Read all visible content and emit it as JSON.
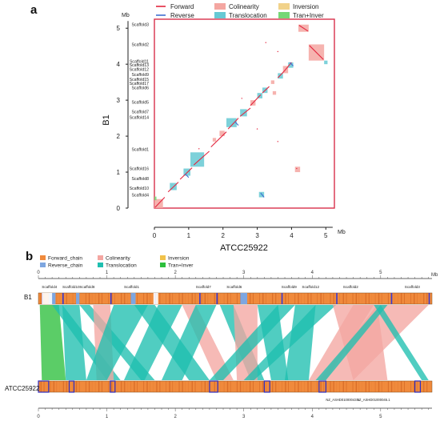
{
  "panel_a": {
    "letter": "a",
    "legend": [
      {
        "label": "Forward",
        "kind": "line",
        "color": "#e3263f"
      },
      {
        "label": "Colinearity",
        "kind": "box",
        "color": "#f4a6a1"
      },
      {
        "label": "Inversion",
        "kind": "box",
        "color": "#f1d28a"
      },
      {
        "label": "Reverse",
        "kind": "line",
        "color": "#3f6fd1"
      },
      {
        "label": "Translocation",
        "kind": "box",
        "color": "#66c9d4"
      },
      {
        "label": "Tran+Inver",
        "kind": "box",
        "color": "#76d776"
      }
    ],
    "y_unit": "Mb",
    "x_unit": "Mb",
    "y_label": "B1",
    "x_label": "ATCC25922",
    "y_ticks": [
      "0",
      "1",
      "2",
      "3",
      "4",
      "5"
    ],
    "x_ticks": [
      "0",
      "1",
      "2",
      "3",
      "4",
      "5"
    ],
    "scaffolds": [
      {
        "name": "Scaffold3",
        "pos": 5.1
      },
      {
        "name": "Scaffold2",
        "pos": 4.55
      },
      {
        "name": "Scaffold11",
        "pos": 4.08
      },
      {
        "name": "Scaffold13",
        "pos": 3.98
      },
      {
        "name": "Scaffold12",
        "pos": 3.86
      },
      {
        "name": "Scaffold9",
        "pos": 3.72
      },
      {
        "name": "Scaffold15",
        "pos": 3.58
      },
      {
        "name": "Scaffold17",
        "pos": 3.47
      },
      {
        "name": "Scaffold6",
        "pos": 3.35
      },
      {
        "name": "Scaffold5",
        "pos": 2.95
      },
      {
        "name": "Scaffold7",
        "pos": 2.68
      },
      {
        "name": "Scaffold14",
        "pos": 2.52
      },
      {
        "name": "Scaffold1",
        "pos": 1.64
      },
      {
        "name": "Scaffold16",
        "pos": 1.1
      },
      {
        "name": "Scaffold8",
        "pos": 0.82
      },
      {
        "name": "Scaffold10",
        "pos": 0.56
      },
      {
        "name": "Scaffold4",
        "pos": 0.37
      }
    ],
    "blocks": [
      {
        "x0": 0.0,
        "x1": 0.25,
        "y0": 0.0,
        "y1": 0.25,
        "type": "colinearity"
      },
      {
        "x0": 0.0,
        "x1": 0.06,
        "y0": 0.22,
        "y1": 0.32,
        "type": "tran_inver"
      },
      {
        "x0": 0.45,
        "x1": 0.65,
        "y0": 0.5,
        "y1": 0.7,
        "type": "translocation"
      },
      {
        "x0": 0.85,
        "x1": 1.05,
        "y0": 0.9,
        "y1": 1.1,
        "type": "translocation"
      },
      {
        "x0": 1.05,
        "x1": 1.45,
        "y0": 1.15,
        "y1": 1.55,
        "type": "translocation"
      },
      {
        "x0": 1.7,
        "x1": 1.8,
        "y0": 1.85,
        "y1": 1.95,
        "type": "colinearity"
      },
      {
        "x0": 1.9,
        "x1": 2.05,
        "y0": 2.0,
        "y1": 2.15,
        "type": "colinearity"
      },
      {
        "x0": 2.1,
        "x1": 2.4,
        "y0": 2.25,
        "y1": 2.5,
        "type": "translocation"
      },
      {
        "x0": 2.5,
        "x1": 2.7,
        "y0": 2.55,
        "y1": 2.75,
        "type": "translocation"
      },
      {
        "x0": 2.8,
        "x1": 2.95,
        "y0": 2.85,
        "y1": 3.0,
        "type": "colinearity"
      },
      {
        "x0": 3.0,
        "x1": 3.15,
        "y0": 3.05,
        "y1": 3.2,
        "type": "translocation"
      },
      {
        "x0": 3.15,
        "x1": 3.3,
        "y0": 3.2,
        "y1": 3.35,
        "type": "translocation"
      },
      {
        "x0": 3.4,
        "x1": 3.5,
        "y0": 3.45,
        "y1": 3.55,
        "type": "colinearity"
      },
      {
        "x0": 3.6,
        "x1": 3.75,
        "y0": 3.6,
        "y1": 3.75,
        "type": "translocation"
      },
      {
        "x0": 3.75,
        "x1": 3.9,
        "y0": 3.75,
        "y1": 3.95,
        "type": "colinearity"
      },
      {
        "x0": 3.9,
        "x1": 4.05,
        "y0": 3.9,
        "y1": 4.05,
        "type": "translocation"
      },
      {
        "x0": 4.2,
        "x1": 4.5,
        "y0": 4.9,
        "y1": 5.1,
        "type": "colinearity"
      },
      {
        "x0": 4.5,
        "x1": 4.95,
        "y0": 4.1,
        "y1": 4.55,
        "type": "colinearity"
      },
      {
        "x0": 4.95,
        "x1": 5.05,
        "y0": 4.0,
        "y1": 4.1,
        "type": "translocation"
      },
      {
        "x0": 3.05,
        "x1": 3.2,
        "y0": 0.3,
        "y1": 0.45,
        "type": "translocation"
      },
      {
        "x0": 3.45,
        "x1": 3.55,
        "y0": 3.15,
        "y1": 3.25,
        "type": "colinearity"
      },
      {
        "x0": 4.1,
        "x1": 4.25,
        "y0": 1.0,
        "y1": 1.15,
        "type": "colinearity"
      }
    ]
  },
  "panel_b": {
    "letter": "b",
    "legend": [
      {
        "label": "Forward_chain",
        "color": "#f08a3c"
      },
      {
        "label": "Colinearity",
        "color": "#f4a6a1"
      },
      {
        "label": "Inversion",
        "color": "#f1c24a"
      },
      {
        "label": "Reverse_chain",
        "color": "#7ea6e0"
      },
      {
        "label": "Translocation",
        "color": "#1fbfb0"
      },
      {
        "label": "Tran+Inver",
        "color": "#2dbf3c"
      }
    ],
    "unit": "Mb",
    "ticks": [
      "0",
      "1",
      "2",
      "3",
      "4",
      "5"
    ],
    "top_label": "B1",
    "bottom_label": "ATCC25922",
    "top_scaffolds": [
      {
        "name": "Scaffold4",
        "pos": 0.05
      },
      {
        "name": "Scaffold10",
        "pos": 0.35
      },
      {
        "name": "Scaffold8",
        "pos": 0.6
      },
      {
        "name": "Scaffold1",
        "pos": 1.25
      },
      {
        "name": "Scaffold7",
        "pos": 2.3
      },
      {
        "name": "Scaffold6",
        "pos": 2.75
      },
      {
        "name": "Scaffold9",
        "pos": 3.55
      },
      {
        "name": "Scaffold12",
        "pos": 3.85
      },
      {
        "name": "Scaffold2",
        "pos": 4.45
      },
      {
        "name": "Scaffold3",
        "pos": 5.35
      }
    ],
    "top_labels_text_right": [
      {
        "name": "NZ_ASHD01000043.1",
        "pos": 4.2
      },
      {
        "name": "NZ_ASHD01000045.1",
        "pos": 4.65
      }
    ],
    "ribbons": [
      {
        "t0": 0.02,
        "t1": 0.3,
        "b0": 0.05,
        "b1": 0.4,
        "type": "tran_inver"
      },
      {
        "t0": 0.2,
        "t1": 0.35,
        "b0": 1.0,
        "b1": 1.2,
        "type": "translocation"
      },
      {
        "t0": 0.35,
        "t1": 0.6,
        "b0": 0.4,
        "b1": 0.7,
        "type": "translocation"
      },
      {
        "t0": 0.6,
        "t1": 0.75,
        "b0": 1.5,
        "b1": 1.7,
        "type": "translocation"
      },
      {
        "t0": 0.8,
        "t1": 1.05,
        "b0": 0.85,
        "b1": 1.1,
        "type": "colinearity"
      },
      {
        "t0": 1.1,
        "t1": 1.6,
        "b0": 0.7,
        "b1": 1.0,
        "type": "translocation"
      },
      {
        "t0": 1.4,
        "t1": 1.7,
        "b0": 2.2,
        "b1": 2.5,
        "type": "translocation"
      },
      {
        "t0": 1.75,
        "t1": 2.1,
        "b0": 1.25,
        "b1": 1.55,
        "type": "translocation"
      },
      {
        "t0": 2.1,
        "t1": 2.3,
        "b0": 2.6,
        "b1": 2.85,
        "type": "colinearity"
      },
      {
        "t0": 2.3,
        "t1": 2.6,
        "b0": 1.8,
        "b1": 2.1,
        "type": "translocation"
      },
      {
        "t0": 2.65,
        "t1": 2.85,
        "b0": 3.1,
        "b1": 3.3,
        "type": "translocation"
      },
      {
        "t0": 2.85,
        "t1": 3.2,
        "b0": 2.9,
        "b1": 3.2,
        "type": "colinearity"
      },
      {
        "t0": 3.2,
        "t1": 3.5,
        "b0": 3.4,
        "b1": 3.65,
        "type": "translocation"
      },
      {
        "t0": 3.5,
        "t1": 3.75,
        "b0": 2.5,
        "b1": 2.7,
        "type": "translocation"
      },
      {
        "t0": 3.75,
        "t1": 4.05,
        "b0": 3.6,
        "b1": 3.95,
        "type": "translocation"
      },
      {
        "t0": 4.05,
        "t1": 4.35,
        "b0": 3.0,
        "b1": 3.15,
        "type": "translocation"
      },
      {
        "t0": 4.3,
        "t1": 4.95,
        "b0": 4.6,
        "b1": 5.1,
        "type": "colinearity"
      },
      {
        "t0": 4.6,
        "t1": 4.9,
        "b0": 3.95,
        "b1": 4.2,
        "type": "colinearity"
      },
      {
        "t0": 4.95,
        "t1": 5.7,
        "b0": 4.1,
        "b1": 4.6,
        "type": "colinearity"
      },
      {
        "t0": 4.9,
        "t1": 5.0,
        "b0": 5.6,
        "b1": 5.7,
        "type": "translocation"
      },
      {
        "t0": 5.0,
        "t1": 5.1,
        "b0": 4.05,
        "b1": 4.2,
        "type": "translocation"
      }
    ]
  }
}
